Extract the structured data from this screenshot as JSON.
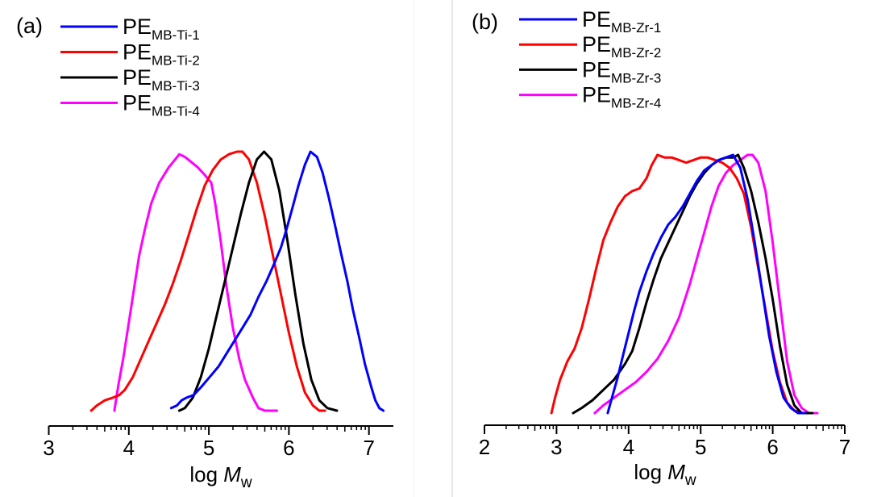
{
  "chart_data": [
    {
      "type": "line",
      "panel_label": "(a)",
      "title": "",
      "xlabel_prefix": "log ",
      "xlabel_italic": "M",
      "xlabel_sub": "w",
      "ylabel": "",
      "xlim": [
        3,
        7.3
      ],
      "ylim": [
        0,
        1
      ],
      "x_ticks": [
        "3",
        "4",
        "5",
        "6",
        "7"
      ],
      "x_tick_values": [
        3,
        4,
        5,
        6,
        7
      ],
      "minor_ticks": "log-decade",
      "grid": false,
      "y_axis_visible": false,
      "legend_position": "top-left",
      "series": [
        {
          "name": "PE",
          "sub": "MB-Ti-1",
          "color": "#0000ff",
          "points": [
            [
              4.53,
              0.01
            ],
            [
              4.6,
              0.02
            ],
            [
              4.66,
              0.04
            ],
            [
              4.72,
              0.05
            ],
            [
              4.81,
              0.06
            ],
            [
              4.9,
              0.09
            ],
            [
              5.01,
              0.13
            ],
            [
              5.12,
              0.17
            ],
            [
              5.22,
              0.22
            ],
            [
              5.32,
              0.27
            ],
            [
              5.42,
              0.32
            ],
            [
              5.52,
              0.37
            ],
            [
              5.62,
              0.44
            ],
            [
              5.72,
              0.5
            ],
            [
              5.82,
              0.57
            ],
            [
              5.9,
              0.63
            ],
            [
              5.97,
              0.7
            ],
            [
              6.05,
              0.79
            ],
            [
              6.12,
              0.87
            ],
            [
              6.2,
              0.95
            ],
            [
              6.27,
              1.0
            ],
            [
              6.35,
              0.98
            ],
            [
              6.42,
              0.92
            ],
            [
              6.5,
              0.82
            ],
            [
              6.58,
              0.71
            ],
            [
              6.65,
              0.61
            ],
            [
              6.73,
              0.5
            ],
            [
              6.8,
              0.39
            ],
            [
              6.88,
              0.28
            ],
            [
              6.95,
              0.18
            ],
            [
              7.03,
              0.09
            ],
            [
              7.08,
              0.04
            ],
            [
              7.13,
              0.01
            ],
            [
              7.18,
              0.0
            ]
          ]
        },
        {
          "name": "PE",
          "sub": "MB-Ti-2",
          "color": "#ff0000",
          "points": [
            [
              3.53,
              0.0
            ],
            [
              3.6,
              0.02
            ],
            [
              3.7,
              0.04
            ],
            [
              3.8,
              0.05
            ],
            [
              3.88,
              0.06
            ],
            [
              3.95,
              0.08
            ],
            [
              4.05,
              0.13
            ],
            [
              4.15,
              0.2
            ],
            [
              4.25,
              0.27
            ],
            [
              4.35,
              0.34
            ],
            [
              4.45,
              0.41
            ],
            [
              4.55,
              0.49
            ],
            [
              4.65,
              0.58
            ],
            [
              4.75,
              0.68
            ],
            [
              4.85,
              0.78
            ],
            [
              4.95,
              0.87
            ],
            [
              5.05,
              0.93
            ],
            [
              5.15,
              0.97
            ],
            [
              5.25,
              0.99
            ],
            [
              5.35,
              1.0
            ],
            [
              5.42,
              1.0
            ],
            [
              5.5,
              0.97
            ],
            [
              5.6,
              0.88
            ],
            [
              5.7,
              0.75
            ],
            [
              5.8,
              0.6
            ],
            [
              5.9,
              0.45
            ],
            [
              6.0,
              0.3
            ],
            [
              6.1,
              0.17
            ],
            [
              6.2,
              0.07
            ],
            [
              6.3,
              0.02
            ],
            [
              6.38,
              0.0
            ],
            [
              6.45,
              0.0
            ]
          ]
        },
        {
          "name": "PE",
          "sub": "MB-Ti-3",
          "color": "#000000",
          "points": [
            [
              4.63,
              0.0
            ],
            [
              4.7,
              0.01
            ],
            [
              4.8,
              0.05
            ],
            [
              4.9,
              0.13
            ],
            [
              5.0,
              0.24
            ],
            [
              5.1,
              0.37
            ],
            [
              5.2,
              0.5
            ],
            [
              5.3,
              0.63
            ],
            [
              5.4,
              0.76
            ],
            [
              5.5,
              0.88
            ],
            [
              5.6,
              0.97
            ],
            [
              5.69,
              1.0
            ],
            [
              5.78,
              0.97
            ],
            [
              5.88,
              0.85
            ],
            [
              5.98,
              0.66
            ],
            [
              6.08,
              0.45
            ],
            [
              6.18,
              0.26
            ],
            [
              6.28,
              0.12
            ],
            [
              6.38,
              0.04
            ],
            [
              6.48,
              0.01
            ],
            [
              6.6,
              0.0
            ]
          ]
        },
        {
          "name": "PE",
          "sub": "MB-Ti-4",
          "color": "#ff00ff",
          "points": [
            [
              3.82,
              0.0
            ],
            [
              3.87,
              0.1
            ],
            [
              3.93,
              0.2
            ],
            [
              3.98,
              0.3
            ],
            [
              4.03,
              0.4
            ],
            [
              4.08,
              0.5
            ],
            [
              4.13,
              0.6
            ],
            [
              4.2,
              0.7
            ],
            [
              4.28,
              0.8
            ],
            [
              4.38,
              0.88
            ],
            [
              4.5,
              0.94
            ],
            [
              4.58,
              0.97
            ],
            [
              4.63,
              0.99
            ],
            [
              4.7,
              0.98
            ],
            [
              4.78,
              0.96
            ],
            [
              4.86,
              0.94
            ],
            [
              4.95,
              0.91
            ],
            [
              5.03,
              0.88
            ],
            [
              5.08,
              0.8
            ],
            [
              5.15,
              0.65
            ],
            [
              5.22,
              0.48
            ],
            [
              5.3,
              0.32
            ],
            [
              5.38,
              0.2
            ],
            [
              5.45,
              0.12
            ],
            [
              5.55,
              0.05
            ],
            [
              5.62,
              0.01
            ],
            [
              5.7,
              0.0
            ],
            [
              5.85,
              0.0
            ]
          ]
        }
      ]
    },
    {
      "type": "line",
      "panel_label": "(b)",
      "title": "",
      "xlabel_prefix": "log ",
      "xlabel_italic": "M",
      "xlabel_sub": "w",
      "ylabel": "",
      "xlim": [
        2,
        7
      ],
      "ylim": [
        0,
        1
      ],
      "x_ticks": [
        "2",
        "3",
        "4",
        "5",
        "6",
        "7"
      ],
      "x_tick_values": [
        2,
        3,
        4,
        5,
        6,
        7
      ],
      "minor_ticks": "log-decade",
      "grid": false,
      "y_axis_visible": false,
      "legend_position": "top-left",
      "series": [
        {
          "name": "PE",
          "sub": "MB-Zr-1",
          "color": "#0000ff",
          "points": [
            [
              3.71,
              0.0
            ],
            [
              3.78,
              0.07
            ],
            [
              3.85,
              0.14
            ],
            [
              3.92,
              0.22
            ],
            [
              4.0,
              0.31
            ],
            [
              4.08,
              0.4
            ],
            [
              4.15,
              0.47
            ],
            [
              4.25,
              0.55
            ],
            [
              4.35,
              0.62
            ],
            [
              4.45,
              0.68
            ],
            [
              4.55,
              0.73
            ],
            [
              4.65,
              0.76
            ],
            [
              4.75,
              0.8
            ],
            [
              4.85,
              0.85
            ],
            [
              4.95,
              0.9
            ],
            [
              5.05,
              0.94
            ],
            [
              5.15,
              0.96
            ],
            [
              5.25,
              0.98
            ],
            [
              5.35,
              0.99
            ],
            [
              5.45,
              1.0
            ],
            [
              5.55,
              0.95
            ],
            [
              5.65,
              0.83
            ],
            [
              5.75,
              0.66
            ],
            [
              5.85,
              0.48
            ],
            [
              5.95,
              0.3
            ],
            [
              6.05,
              0.16
            ],
            [
              6.15,
              0.06
            ],
            [
              6.25,
              0.02
            ],
            [
              6.35,
              0.0
            ],
            [
              6.45,
              0.0
            ]
          ]
        },
        {
          "name": "PE",
          "sub": "MB-Zr-2",
          "color": "#ff0000",
          "points": [
            [
              2.93,
              0.0
            ],
            [
              2.98,
              0.06
            ],
            [
              3.05,
              0.13
            ],
            [
              3.15,
              0.2
            ],
            [
              3.25,
              0.25
            ],
            [
              3.35,
              0.33
            ],
            [
              3.45,
              0.44
            ],
            [
              3.55,
              0.56
            ],
            [
              3.65,
              0.67
            ],
            [
              3.75,
              0.74
            ],
            [
              3.85,
              0.8
            ],
            [
              3.95,
              0.84
            ],
            [
              4.05,
              0.86
            ],
            [
              4.15,
              0.87
            ],
            [
              4.25,
              0.91
            ],
            [
              4.32,
              0.96
            ],
            [
              4.4,
              1.0
            ],
            [
              4.5,
              0.99
            ],
            [
              4.6,
              0.99
            ],
            [
              4.7,
              0.98
            ],
            [
              4.8,
              0.97
            ],
            [
              4.9,
              0.98
            ],
            [
              5.0,
              0.99
            ],
            [
              5.1,
              0.99
            ],
            [
              5.2,
              0.98
            ],
            [
              5.3,
              0.97
            ],
            [
              5.4,
              0.95
            ],
            [
              5.5,
              0.91
            ],
            [
              5.6,
              0.85
            ],
            [
              5.7,
              0.72
            ],
            [
              5.8,
              0.56
            ],
            [
              5.9,
              0.4
            ],
            [
              6.0,
              0.24
            ],
            [
              6.1,
              0.12
            ],
            [
              6.2,
              0.04
            ],
            [
              6.3,
              0.01
            ],
            [
              6.42,
              0.0
            ]
          ]
        },
        {
          "name": "PE",
          "sub": "MB-Zr-3",
          "color": "#000000",
          "points": [
            [
              3.23,
              0.0
            ],
            [
              3.35,
              0.02
            ],
            [
              3.5,
              0.05
            ],
            [
              3.65,
              0.09
            ],
            [
              3.8,
              0.13
            ],
            [
              3.95,
              0.19
            ],
            [
              4.05,
              0.24
            ],
            [
              4.15,
              0.33
            ],
            [
              4.25,
              0.43
            ],
            [
              4.35,
              0.52
            ],
            [
              4.45,
              0.6
            ],
            [
              4.55,
              0.66
            ],
            [
              4.65,
              0.72
            ],
            [
              4.75,
              0.78
            ],
            [
              4.85,
              0.84
            ],
            [
              4.95,
              0.89
            ],
            [
              5.05,
              0.93
            ],
            [
              5.15,
              0.96
            ],
            [
              5.25,
              0.98
            ],
            [
              5.35,
              0.99
            ],
            [
              5.45,
              0.99
            ],
            [
              5.52,
              1.0
            ],
            [
              5.6,
              0.95
            ],
            [
              5.7,
              0.86
            ],
            [
              5.8,
              0.74
            ],
            [
              5.9,
              0.6
            ],
            [
              6.0,
              0.44
            ],
            [
              6.1,
              0.26
            ],
            [
              6.2,
              0.11
            ],
            [
              6.3,
              0.03
            ],
            [
              6.4,
              0.0
            ],
            [
              6.55,
              0.0
            ]
          ]
        },
        {
          "name": "PE",
          "sub": "MB-Zr-4",
          "color": "#ff00ff",
          "points": [
            [
              3.53,
              0.0
            ],
            [
              3.65,
              0.03
            ],
            [
              3.8,
              0.06
            ],
            [
              3.95,
              0.09
            ],
            [
              4.1,
              0.12
            ],
            [
              4.25,
              0.16
            ],
            [
              4.4,
              0.21
            ],
            [
              4.55,
              0.28
            ],
            [
              4.7,
              0.37
            ],
            [
              4.85,
              0.5
            ],
            [
              4.95,
              0.6
            ],
            [
              5.05,
              0.7
            ],
            [
              5.15,
              0.8
            ],
            [
              5.25,
              0.88
            ],
            [
              5.35,
              0.93
            ],
            [
              5.45,
              0.96
            ],
            [
              5.55,
              0.98
            ],
            [
              5.65,
              1.0
            ],
            [
              5.72,
              1.0
            ],
            [
              5.8,
              0.97
            ],
            [
              5.9,
              0.86
            ],
            [
              6.0,
              0.66
            ],
            [
              6.1,
              0.43
            ],
            [
              6.2,
              0.2
            ],
            [
              6.3,
              0.07
            ],
            [
              6.4,
              0.02
            ],
            [
              6.5,
              0.0
            ],
            [
              6.62,
              0.0
            ]
          ]
        }
      ]
    }
  ]
}
